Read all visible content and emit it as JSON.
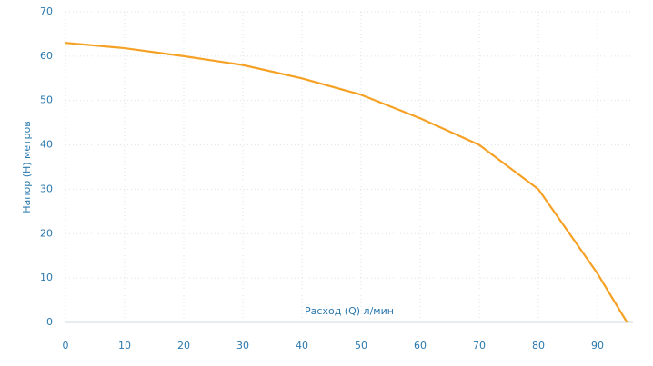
{
  "chart_data": {
    "type": "line",
    "x_label": "Расход (Q) л/мин",
    "y_label": "Напор (H) метров",
    "x": [
      0,
      10,
      20,
      30,
      40,
      50,
      60,
      70,
      80,
      90,
      95
    ],
    "series": [
      {
        "color": "#f5a125",
        "values": [
          63,
          61.8,
          60,
          58,
          55,
          51.3,
          46,
          40,
          30,
          11,
          0
        ]
      }
    ],
    "xlim": [
      0,
      96
    ],
    "xticks": [
      0,
      10,
      20,
      30,
      40,
      50,
      60,
      70,
      80,
      90
    ],
    "ylim": [
      0,
      70
    ],
    "yticks": [
      0,
      10,
      20,
      30,
      40,
      50,
      60,
      70
    ],
    "grid": true
  }
}
